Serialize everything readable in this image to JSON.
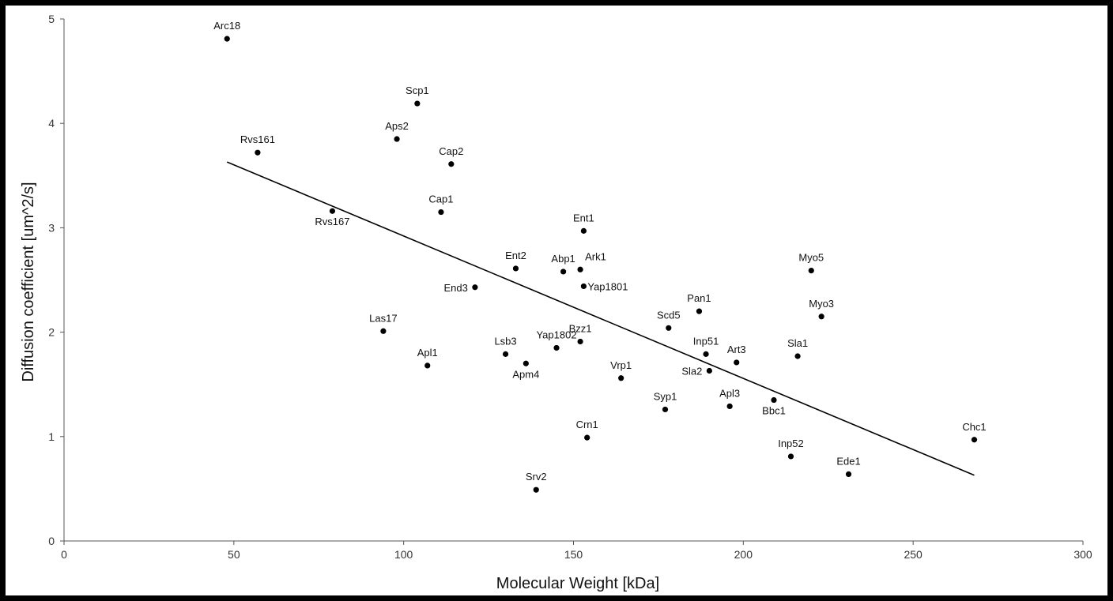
{
  "chart_data": {
    "type": "scatter",
    "xlabel": "Molecular Weight [kDa]",
    "ylabel": "Diffusion coefficient [um^2/s]",
    "xlim": [
      0,
      300
    ],
    "ylim": [
      0,
      5
    ],
    "x_ticks": [
      0,
      50,
      100,
      150,
      200,
      250,
      300
    ],
    "y_ticks": [
      0,
      1,
      2,
      3,
      4,
      5
    ],
    "grid": false,
    "legend": "none",
    "trendline": {
      "x": [
        48,
        268
      ],
      "y": [
        3.63,
        0.63
      ]
    },
    "points": [
      {
        "label": "Arc18",
        "x": 48,
        "y": 4.81,
        "label_pos": "above"
      },
      {
        "label": "Scp1",
        "x": 104,
        "y": 4.19,
        "label_pos": "above"
      },
      {
        "label": "Aps2",
        "x": 98,
        "y": 3.85,
        "label_pos": "above"
      },
      {
        "label": "Rvs161",
        "x": 57,
        "y": 3.72,
        "label_pos": "above"
      },
      {
        "label": "Cap2",
        "x": 114,
        "y": 3.61,
        "label_pos": "above"
      },
      {
        "label": "Rvs167",
        "x": 79,
        "y": 3.16,
        "label_pos": "below"
      },
      {
        "label": "Cap1",
        "x": 111,
        "y": 3.15,
        "label_pos": "above"
      },
      {
        "label": "Ent1",
        "x": 153,
        "y": 2.97,
        "label_pos": "above"
      },
      {
        "label": "Ent2",
        "x": 133,
        "y": 2.61,
        "label_pos": "above"
      },
      {
        "label": "Abp1",
        "x": 147,
        "y": 2.58,
        "label_pos": "above"
      },
      {
        "label": "Ark1",
        "x": 152,
        "y": 2.6,
        "label_pos": "above-right"
      },
      {
        "label": "Myo5",
        "x": 220,
        "y": 2.59,
        "label_pos": "above"
      },
      {
        "label": "Yap1801",
        "x": 153,
        "y": 2.44,
        "label_pos": "right"
      },
      {
        "label": "End3",
        "x": 121,
        "y": 2.43,
        "label_pos": "left"
      },
      {
        "label": "Pan1",
        "x": 187,
        "y": 2.2,
        "label_pos": "above"
      },
      {
        "label": "Myo3",
        "x": 223,
        "y": 2.15,
        "label_pos": "above"
      },
      {
        "label": "Scd5",
        "x": 178,
        "y": 2.04,
        "label_pos": "above"
      },
      {
        "label": "Las17",
        "x": 94,
        "y": 2.01,
        "label_pos": "above"
      },
      {
        "label": "Bzz1",
        "x": 152,
        "y": 1.91,
        "label_pos": "above"
      },
      {
        "label": "Yap1802",
        "x": 145,
        "y": 1.85,
        "label_pos": "above"
      },
      {
        "label": "Lsb3",
        "x": 130,
        "y": 1.79,
        "label_pos": "above"
      },
      {
        "label": "Inp51",
        "x": 189,
        "y": 1.79,
        "label_pos": "above"
      },
      {
        "label": "Sla1",
        "x": 216,
        "y": 1.77,
        "label_pos": "above"
      },
      {
        "label": "Art3",
        "x": 198,
        "y": 1.71,
        "label_pos": "above"
      },
      {
        "label": "Apm4",
        "x": 136,
        "y": 1.7,
        "label_pos": "below"
      },
      {
        "label": "Apl1",
        "x": 107,
        "y": 1.68,
        "label_pos": "above"
      },
      {
        "label": "Sla2",
        "x": 190,
        "y": 1.63,
        "label_pos": "left"
      },
      {
        "label": "Vrp1",
        "x": 164,
        "y": 1.56,
        "label_pos": "above"
      },
      {
        "label": "Bbc1",
        "x": 209,
        "y": 1.35,
        "label_pos": "below"
      },
      {
        "label": "Apl3",
        "x": 196,
        "y": 1.29,
        "label_pos": "above"
      },
      {
        "label": "Syp1",
        "x": 177,
        "y": 1.26,
        "label_pos": "above"
      },
      {
        "label": "Crn1",
        "x": 154,
        "y": 0.99,
        "label_pos": "above"
      },
      {
        "label": "Chc1",
        "x": 268,
        "y": 0.97,
        "label_pos": "above"
      },
      {
        "label": "Inp52",
        "x": 214,
        "y": 0.81,
        "label_pos": "above"
      },
      {
        "label": "Ede1",
        "x": 231,
        "y": 0.64,
        "label_pos": "above"
      },
      {
        "label": "Srv2",
        "x": 139,
        "y": 0.49,
        "label_pos": "above"
      }
    ]
  }
}
